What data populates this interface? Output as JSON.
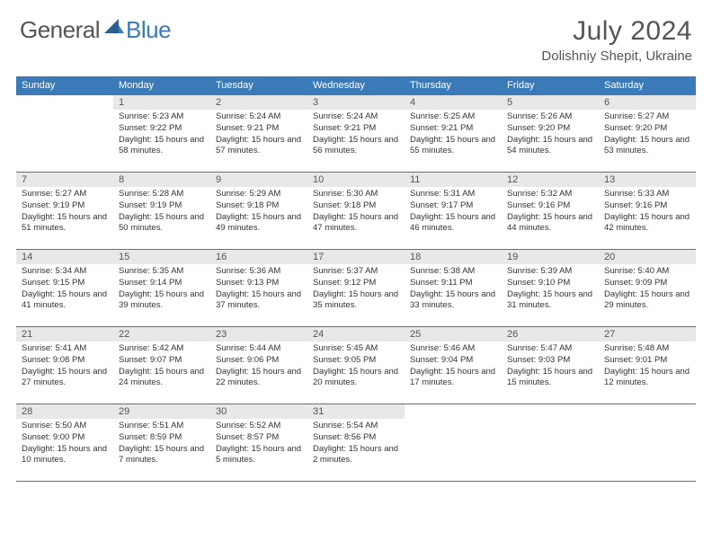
{
  "logo": {
    "general": "General",
    "blue": "Blue"
  },
  "title": "July 2024",
  "location": "Dolishniy Shepit, Ukraine",
  "colors": {
    "header_bg": "#3a7ab8",
    "header_fg": "#ffffff",
    "daynum_bg": "#e8e8e8",
    "text": "#333333",
    "rule": "#3a7ab8",
    "logo_gray": "#555555",
    "logo_blue": "#3a7ab8"
  },
  "day_headers": [
    "Sunday",
    "Monday",
    "Tuesday",
    "Wednesday",
    "Thursday",
    "Friday",
    "Saturday"
  ],
  "weeks": [
    [
      null,
      {
        "n": "1",
        "sr": "5:23 AM",
        "ss": "9:22 PM",
        "dl": "15 hours and 58 minutes."
      },
      {
        "n": "2",
        "sr": "5:24 AM",
        "ss": "9:21 PM",
        "dl": "15 hours and 57 minutes."
      },
      {
        "n": "3",
        "sr": "5:24 AM",
        "ss": "9:21 PM",
        "dl": "15 hours and 56 minutes."
      },
      {
        "n": "4",
        "sr": "5:25 AM",
        "ss": "9:21 PM",
        "dl": "15 hours and 55 minutes."
      },
      {
        "n": "5",
        "sr": "5:26 AM",
        "ss": "9:20 PM",
        "dl": "15 hours and 54 minutes."
      },
      {
        "n": "6",
        "sr": "5:27 AM",
        "ss": "9:20 PM",
        "dl": "15 hours and 53 minutes."
      }
    ],
    [
      {
        "n": "7",
        "sr": "5:27 AM",
        "ss": "9:19 PM",
        "dl": "15 hours and 51 minutes."
      },
      {
        "n": "8",
        "sr": "5:28 AM",
        "ss": "9:19 PM",
        "dl": "15 hours and 50 minutes."
      },
      {
        "n": "9",
        "sr": "5:29 AM",
        "ss": "9:18 PM",
        "dl": "15 hours and 49 minutes."
      },
      {
        "n": "10",
        "sr": "5:30 AM",
        "ss": "9:18 PM",
        "dl": "15 hours and 47 minutes."
      },
      {
        "n": "11",
        "sr": "5:31 AM",
        "ss": "9:17 PM",
        "dl": "15 hours and 46 minutes."
      },
      {
        "n": "12",
        "sr": "5:32 AM",
        "ss": "9:16 PM",
        "dl": "15 hours and 44 minutes."
      },
      {
        "n": "13",
        "sr": "5:33 AM",
        "ss": "9:16 PM",
        "dl": "15 hours and 42 minutes."
      }
    ],
    [
      {
        "n": "14",
        "sr": "5:34 AM",
        "ss": "9:15 PM",
        "dl": "15 hours and 41 minutes."
      },
      {
        "n": "15",
        "sr": "5:35 AM",
        "ss": "9:14 PM",
        "dl": "15 hours and 39 minutes."
      },
      {
        "n": "16",
        "sr": "5:36 AM",
        "ss": "9:13 PM",
        "dl": "15 hours and 37 minutes."
      },
      {
        "n": "17",
        "sr": "5:37 AM",
        "ss": "9:12 PM",
        "dl": "15 hours and 35 minutes."
      },
      {
        "n": "18",
        "sr": "5:38 AM",
        "ss": "9:11 PM",
        "dl": "15 hours and 33 minutes."
      },
      {
        "n": "19",
        "sr": "5:39 AM",
        "ss": "9:10 PM",
        "dl": "15 hours and 31 minutes."
      },
      {
        "n": "20",
        "sr": "5:40 AM",
        "ss": "9:09 PM",
        "dl": "15 hours and 29 minutes."
      }
    ],
    [
      {
        "n": "21",
        "sr": "5:41 AM",
        "ss": "9:08 PM",
        "dl": "15 hours and 27 minutes."
      },
      {
        "n": "22",
        "sr": "5:42 AM",
        "ss": "9:07 PM",
        "dl": "15 hours and 24 minutes."
      },
      {
        "n": "23",
        "sr": "5:44 AM",
        "ss": "9:06 PM",
        "dl": "15 hours and 22 minutes."
      },
      {
        "n": "24",
        "sr": "5:45 AM",
        "ss": "9:05 PM",
        "dl": "15 hours and 20 minutes."
      },
      {
        "n": "25",
        "sr": "5:46 AM",
        "ss": "9:04 PM",
        "dl": "15 hours and 17 minutes."
      },
      {
        "n": "26",
        "sr": "5:47 AM",
        "ss": "9:03 PM",
        "dl": "15 hours and 15 minutes."
      },
      {
        "n": "27",
        "sr": "5:48 AM",
        "ss": "9:01 PM",
        "dl": "15 hours and 12 minutes."
      }
    ],
    [
      {
        "n": "28",
        "sr": "5:50 AM",
        "ss": "9:00 PM",
        "dl": "15 hours and 10 minutes."
      },
      {
        "n": "29",
        "sr": "5:51 AM",
        "ss": "8:59 PM",
        "dl": "15 hours and 7 minutes."
      },
      {
        "n": "30",
        "sr": "5:52 AM",
        "ss": "8:57 PM",
        "dl": "15 hours and 5 minutes."
      },
      {
        "n": "31",
        "sr": "5:54 AM",
        "ss": "8:56 PM",
        "dl": "15 hours and 2 minutes."
      },
      null,
      null,
      null
    ]
  ],
  "labels": {
    "sunrise": "Sunrise: ",
    "sunset": "Sunset: ",
    "daylight": "Daylight: "
  }
}
